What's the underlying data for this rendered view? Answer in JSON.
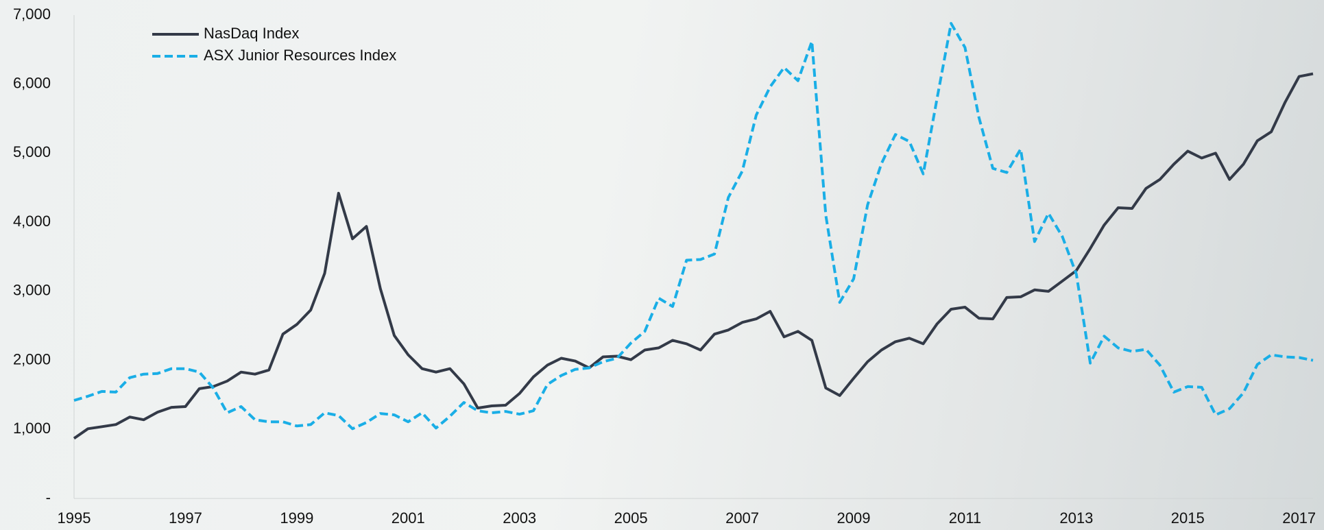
{
  "chart_data": {
    "type": "line",
    "x": [
      1995,
      1995.25,
      1995.5,
      1995.75,
      1996,
      1996.25,
      1996.5,
      1996.75,
      1997,
      1997.25,
      1997.5,
      1997.75,
      1998,
      1998.25,
      1998.5,
      1998.75,
      1999,
      1999.25,
      1999.5,
      1999.75,
      2000,
      2000.25,
      2000.5,
      2000.75,
      2001,
      2001.25,
      2001.5,
      2001.75,
      2002,
      2002.25,
      2002.5,
      2002.75,
      2003,
      2003.25,
      2003.5,
      2003.75,
      2004,
      2004.25,
      2004.5,
      2004.75,
      2005,
      2005.25,
      2005.5,
      2005.75,
      2006,
      2006.25,
      2006.5,
      2006.75,
      2007,
      2007.25,
      2007.5,
      2007.75,
      2008,
      2008.25,
      2008.5,
      2008.75,
      2009,
      2009.25,
      2009.5,
      2009.75,
      2010,
      2010.25,
      2010.5,
      2010.75,
      2011,
      2011.25,
      2011.5,
      2011.75,
      2012,
      2012.25,
      2012.5,
      2012.75,
      2013,
      2013.25,
      2013.5,
      2013.75,
      2014,
      2014.25,
      2014.5,
      2014.75,
      2015,
      2015.25,
      2015.5,
      2015.75,
      2016,
      2016.25,
      2016.5,
      2016.75,
      2017,
      2017.25
    ],
    "series": [
      {
        "name": "NasDaq Index",
        "color": "#333a48",
        "dash": false,
        "values": [
          870,
          1010,
          1040,
          1070,
          1180,
          1140,
          1250,
          1320,
          1330,
          1590,
          1620,
          1700,
          1830,
          1800,
          1860,
          2380,
          2520,
          2730,
          3260,
          4420,
          3760,
          3940,
          3040,
          2360,
          2080,
          1880,
          1830,
          1880,
          1660,
          1310,
          1340,
          1350,
          1520,
          1760,
          1930,
          2030,
          1990,
          1890,
          2050,
          2060,
          2010,
          2150,
          2180,
          2290,
          2240,
          2150,
          2380,
          2440,
          2550,
          2600,
          2710,
          2340,
          2420,
          2290,
          1600,
          1490,
          1740,
          1980,
          2150,
          2270,
          2320,
          2240,
          2530,
          2740,
          2770,
          2610,
          2600,
          2910,
          2920,
          3020,
          3000,
          3150,
          3300,
          3620,
          3960,
          4210,
          4200,
          4490,
          4620,
          4840,
          5030,
          4930,
          5000,
          4620,
          4840,
          5180,
          5310,
          5740,
          6110,
          6150
        ]
      },
      {
        "name": "ASX Junior Resources Index",
        "color": "#1aaee6",
        "dash": true,
        "values": [
          1420,
          1480,
          1550,
          1540,
          1750,
          1800,
          1810,
          1880,
          1880,
          1830,
          1600,
          1240,
          1330,
          1140,
          1110,
          1110,
          1050,
          1070,
          1240,
          1200,
          1010,
          1100,
          1230,
          1210,
          1110,
          1240,
          1020,
          1190,
          1390,
          1270,
          1240,
          1260,
          1220,
          1270,
          1650,
          1780,
          1870,
          1890,
          1980,
          2030,
          2250,
          2420,
          2900,
          2780,
          3450,
          3460,
          3540,
          4360,
          4740,
          5550,
          5960,
          6240,
          6050,
          6620,
          4100,
          2840,
          3180,
          4250,
          4850,
          5270,
          5170,
          4700,
          5800,
          6880,
          6530,
          5520,
          4780,
          4720,
          5060,
          3720,
          4130,
          3790,
          3250,
          1960,
          2350,
          2180,
          2130,
          2160,
          1930,
          1540,
          1620,
          1610,
          1210,
          1300,
          1530,
          1940,
          2080,
          2050,
          2040,
          2000
        ]
      }
    ],
    "xlim": [
      1995,
      2017.25
    ],
    "xticks": [
      1995,
      1997,
      1999,
      2001,
      2003,
      2005,
      2007,
      2009,
      2011,
      2013,
      2015,
      2017
    ],
    "ylim": [
      0,
      7000
    ],
    "yticks": [
      {
        "value": 0,
        "label": "-"
      },
      {
        "value": 1000,
        "label": "1,000"
      },
      {
        "value": 2000,
        "label": "2,000"
      },
      {
        "value": 3000,
        "label": "3,000"
      },
      {
        "value": 4000,
        "label": "4,000"
      },
      {
        "value": 5000,
        "label": "5,000"
      },
      {
        "value": 6000,
        "label": "6,000"
      },
      {
        "value": 7000,
        "label": "7,000"
      }
    ],
    "grid": false,
    "legend": "upper left"
  }
}
